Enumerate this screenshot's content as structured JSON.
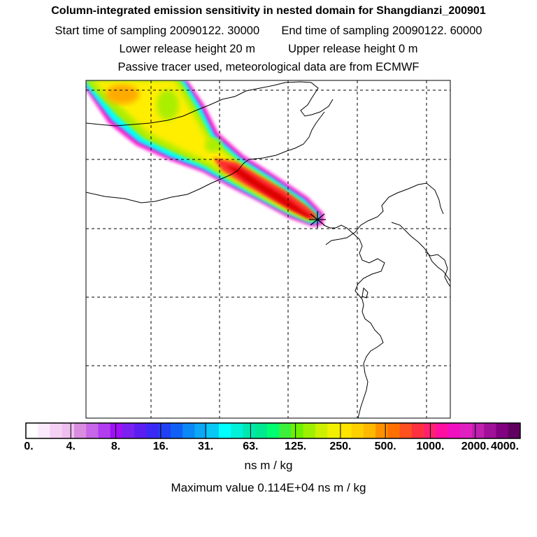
{
  "header": {
    "title": "Column-integrated emission sensitivity in nested domain for Shangdianzi_200901",
    "start_label": "Start time of sampling",
    "start_value": "20090122. 30000",
    "end_label": "End time of sampling",
    "end_value": "20090122. 60000",
    "lower_label": "Lower release height",
    "lower_value": "20 m",
    "upper_label": "Upper release height",
    "upper_value": "0 m",
    "note": "Passive tracer used, meteorological data are from ECMWF"
  },
  "colorbar": {
    "ticks": [
      "0.",
      "4.",
      "8.",
      "16.",
      "31.",
      "63.",
      "125.",
      "250.",
      "500.",
      "1000.",
      "2000.",
      "4000."
    ],
    "colors": [
      "#ffffff",
      "#fbeafb",
      "#f5d0f5",
      "#eebeef",
      "#d98ce0",
      "#c766e8",
      "#b23cf0",
      "#9f10f5",
      "#7a20f0",
      "#5a1ef2",
      "#3b2af5",
      "#2040f5",
      "#1060f5",
      "#0a88f5",
      "#0aa8f5",
      "#08c8f5",
      "#00ffff",
      "#00f0d8",
      "#00e8b0",
      "#00e890",
      "#00ff70",
      "#3cf03c",
      "#6ef000",
      "#9cf000",
      "#ccf000",
      "#f0f000",
      "#ffe400",
      "#ffd000",
      "#ffb800",
      "#ff9000",
      "#ff7000",
      "#ff5020",
      "#ff3040",
      "#ff2070",
      "#ff10a0",
      "#f010c0",
      "#e020c0",
      "#c020b0",
      "#a01098",
      "#800080",
      "#600060"
    ],
    "units": "ns m / kg"
  },
  "summary": {
    "max_label": "Maximum value",
    "max_value": "0.114E+04",
    "max_units": "ns m / kg"
  },
  "map": {
    "receptor_marker": "x-cross-icon",
    "plume_colors": {
      "edge": "#ff10d0",
      "outer": "#00ffff",
      "mid": "#aaee00",
      "core": "#ffee00",
      "orange": "#ffaa00",
      "high": "#ff3030",
      "peak": "#dd0000"
    }
  }
}
